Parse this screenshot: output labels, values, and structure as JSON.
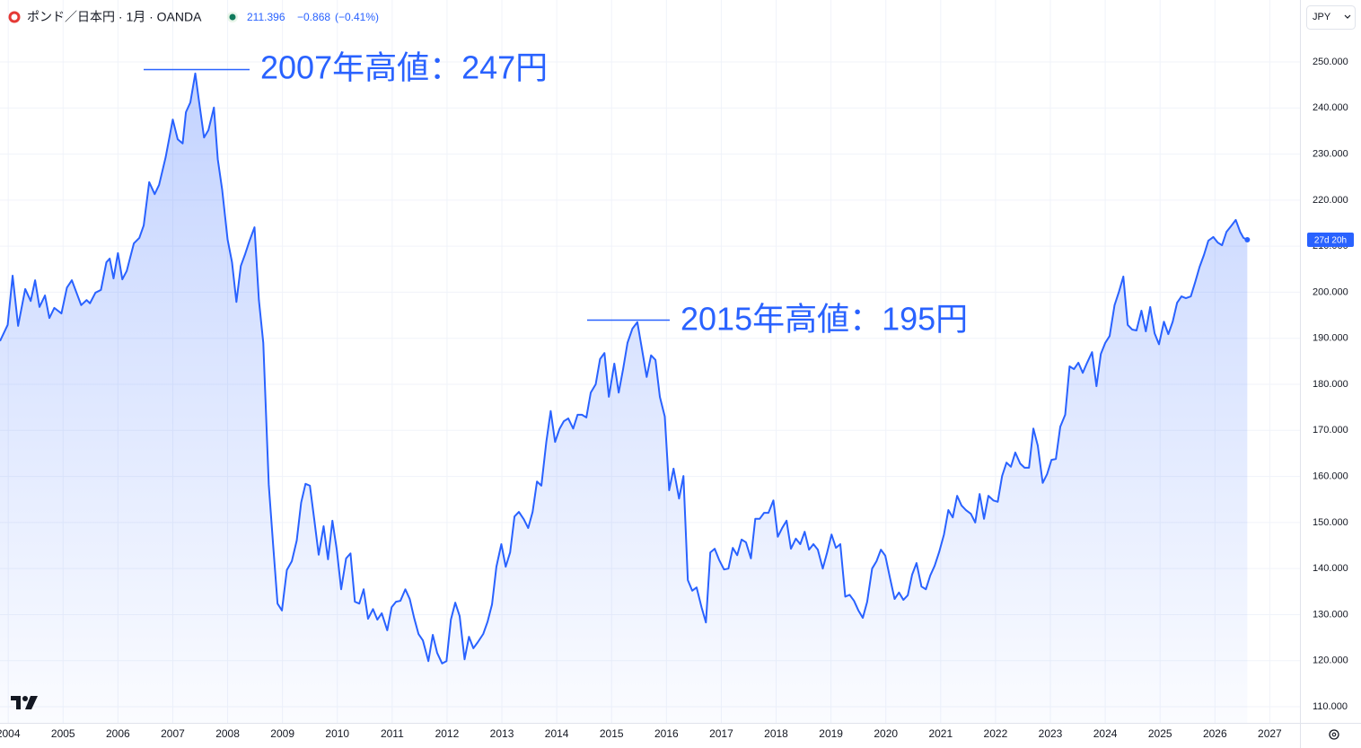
{
  "chart_data": {
    "type": "line",
    "title": "ポンド／日本円 · 1月 · OANDA",
    "last_price": "211.396",
    "change": "−0.868",
    "change_percent": "(−0.41%)",
    "currency": "JPY",
    "countdown": "27d 20h",
    "annotations": [
      "2007年高値：247円",
      "2015年高値：195円"
    ],
    "color": "#2962ff",
    "grid": true,
    "xlim": [
      2003.85,
      2027.55
    ],
    "ylim": [
      106.5,
      263.45
    ],
    "xticks": [
      2004,
      2005,
      2006,
      2007,
      2008,
      2009,
      2010,
      2011,
      2012,
      2013,
      2014,
      2015,
      2016,
      2017,
      2018,
      2019,
      2020,
      2021,
      2022,
      2023,
      2024,
      2025,
      2026,
      2027
    ],
    "yticks": [
      {
        "value": 110,
        "label": "110.000"
      },
      {
        "value": 120,
        "label": "120.000"
      },
      {
        "value": 130,
        "label": "130.000"
      },
      {
        "value": 140,
        "label": "140.000"
      },
      {
        "value": 150,
        "label": "150.000"
      },
      {
        "value": 160,
        "label": "160.000"
      },
      {
        "value": 170,
        "label": "170.000"
      },
      {
        "value": 180,
        "label": "180.000"
      },
      {
        "value": 190,
        "label": "190.000"
      },
      {
        "value": 200,
        "label": "200.000"
      },
      {
        "value": 210,
        "label": "210.000"
      },
      {
        "value": 220,
        "label": "220.000"
      },
      {
        "value": 230,
        "label": "230.000"
      },
      {
        "value": 240,
        "label": "240.000"
      },
      {
        "value": 250,
        "label": "250.000"
      }
    ],
    "x": [
      2003.85,
      2003.99,
      2004.08,
      2004.18,
      2004.31,
      2004.41,
      2004.49,
      2004.57,
      2004.67,
      2004.75,
      2004.84,
      2004.97,
      2005.07,
      2005.16,
      2005.33,
      2005.43,
      2005.49,
      2005.59,
      2005.69,
      2005.79,
      2005.85,
      2005.92,
      2006.0,
      2006.08,
      2006.16,
      2006.29,
      2006.39,
      2006.47,
      2006.57,
      2006.67,
      2006.75,
      2006.87,
      2007.0,
      2007.09,
      2007.18,
      2007.24,
      2007.32,
      2007.41,
      2007.47,
      2007.57,
      2007.65,
      2007.75,
      2007.82,
      2007.9,
      2008.0,
      2008.08,
      2008.16,
      2008.24,
      2008.32,
      2008.4,
      2008.49,
      2008.57,
      2008.65,
      2008.75,
      2008.83,
      2008.91,
      2008.99,
      2009.08,
      2009.17,
      2009.26,
      2009.34,
      2009.42,
      2009.5,
      2009.58,
      2009.66,
      2009.75,
      2009.83,
      2009.91,
      2009.99,
      2010.07,
      2010.16,
      2010.24,
      2010.32,
      2010.4,
      2010.48,
      2010.56,
      2010.65,
      2010.73,
      2010.81,
      2010.91,
      2010.99,
      2011.07,
      2011.15,
      2011.24,
      2011.32,
      2011.4,
      2011.48,
      2011.56,
      2011.66,
      2011.74,
      2011.82,
      2011.91,
      2011.99,
      2012.07,
      2012.15,
      2012.23,
      2012.32,
      2012.4,
      2012.48,
      2012.56,
      2012.66,
      2012.74,
      2012.82,
      2012.9,
      2012.99,
      2013.07,
      2013.15,
      2013.23,
      2013.31,
      2013.4,
      2013.48,
      2013.56,
      2013.64,
      2013.72,
      2013.81,
      2013.89,
      2013.97,
      2014.05,
      2014.13,
      2014.21,
      2014.3,
      2014.38,
      2014.46,
      2014.54,
      2014.62,
      2014.71,
      2014.79,
      2014.87,
      2014.95,
      2015.05,
      2015.13,
      2015.21,
      2015.29,
      2015.38,
      2015.47,
      2015.56,
      2015.64,
      2015.72,
      2015.8,
      2015.88,
      2015.97,
      2016.05,
      2016.13,
      2016.23,
      2016.31,
      2016.39,
      2016.47,
      2016.55,
      2016.64,
      2016.72,
      2016.8,
      2016.88,
      2016.96,
      2017.05,
      2017.13,
      2017.21,
      2017.29,
      2017.37,
      2017.45,
      2017.54,
      2017.62,
      2017.7,
      2017.78,
      2017.86,
      2017.95,
      2018.03,
      2018.11,
      2018.19,
      2018.27,
      2018.36,
      2018.44,
      2018.52,
      2018.6,
      2018.68,
      2018.76,
      2018.85,
      2018.93,
      2019.01,
      2019.09,
      2019.17,
      2019.26,
      2019.34,
      2019.42,
      2019.5,
      2019.58,
      2019.66,
      2019.75,
      2019.83,
      2019.91,
      2019.99,
      2020.07,
      2020.16,
      2020.24,
      2020.32,
      2020.4,
      2020.48,
      2020.56,
      2020.65,
      2020.73,
      2020.81,
      2020.89,
      2020.97,
      2021.06,
      2021.14,
      2021.22,
      2021.3,
      2021.38,
      2021.46,
      2021.55,
      2021.63,
      2021.71,
      2021.79,
      2021.87,
      2021.96,
      2022.04,
      2022.12,
      2022.2,
      2022.28,
      2022.36,
      2022.45,
      2022.53,
      2022.61,
      2022.69,
      2022.77,
      2022.86,
      2022.94,
      2023.02,
      2023.1,
      2023.18,
      2023.27,
      2023.35,
      2023.43,
      2023.51,
      2023.59,
      2023.67,
      2023.76,
      2023.84,
      2023.92,
      2024.0,
      2024.08,
      2024.17,
      2024.25,
      2024.33,
      2024.41,
      2024.49,
      2024.57,
      2024.66,
      2024.74,
      2024.82,
      2024.9,
      2024.98,
      2025.07,
      2025.15,
      2025.23,
      2025.31,
      2025.39,
      2025.47,
      2025.56,
      2025.64,
      2025.72,
      2025.8,
      2025.88,
      2025.97,
      2026.05,
      2026.13,
      2026.21,
      2026.29,
      2026.38,
      2026.46,
      2026.52,
      2026.59
    ],
    "values": [
      189.4,
      192.9,
      203.6,
      192.7,
      200.7,
      198.1,
      202.6,
      196.8,
      199.3,
      194.4,
      196.6,
      195.4,
      201.0,
      202.6,
      197.2,
      198.3,
      197.6,
      199.9,
      200.5,
      206.5,
      207.3,
      203.0,
      208.5,
      202.8,
      204.6,
      210.6,
      211.8,
      214.5,
      223.9,
      221.3,
      223.3,
      229.3,
      237.5,
      233.2,
      232.3,
      239.1,
      241.2,
      247.5,
      242.2,
      233.6,
      235.2,
      240.1,
      228.9,
      222.3,
      211.4,
      206.5,
      197.9,
      205.7,
      208.3,
      211.2,
      214.1,
      198.3,
      189.0,
      158.2,
      145.1,
      132.4,
      130.9,
      139.7,
      141.6,
      146.1,
      154.3,
      158.4,
      158.0,
      150.6,
      143.0,
      149.2,
      142.0,
      150.4,
      144.1,
      135.5,
      142.2,
      143.3,
      132.8,
      132.4,
      135.5,
      129.1,
      131.2,
      128.9,
      130.3,
      126.6,
      131.6,
      132.8,
      133.0,
      135.5,
      133.4,
      129.3,
      125.8,
      124.4,
      119.9,
      125.6,
      121.7,
      119.4,
      119.9,
      128.9,
      132.6,
      129.7,
      120.3,
      125.2,
      122.7,
      124.0,
      125.8,
      128.5,
      132.2,
      140.4,
      145.3,
      140.4,
      143.5,
      151.3,
      152.3,
      150.7,
      148.8,
      152.3,
      158.9,
      158.0,
      167.5,
      174.2,
      167.5,
      170.3,
      172.0,
      172.6,
      170.4,
      173.4,
      173.4,
      172.8,
      178.2,
      180.0,
      185.5,
      186.8,
      177.3,
      184.5,
      178.2,
      183.3,
      189.0,
      192.1,
      193.5,
      187.2,
      181.6,
      186.3,
      185.3,
      177.3,
      173.0,
      157.0,
      161.7,
      155.2,
      160.1,
      137.5,
      135.2,
      135.9,
      131.6,
      128.3,
      143.5,
      144.3,
      141.9,
      139.8,
      140.0,
      144.5,
      142.9,
      146.3,
      145.7,
      142.2,
      150.8,
      150.8,
      152.1,
      152.1,
      154.8,
      146.9,
      148.8,
      150.4,
      144.3,
      146.5,
      145.3,
      148.0,
      144.1,
      145.3,
      144.1,
      140.0,
      143.5,
      147.4,
      144.5,
      145.3,
      133.9,
      134.3,
      133.0,
      130.9,
      129.3,
      132.8,
      140.0,
      141.6,
      144.1,
      142.8,
      138.3,
      133.4,
      134.8,
      133.2,
      134.2,
      138.7,
      141.2,
      136.1,
      135.5,
      138.5,
      140.6,
      143.5,
      147.4,
      152.7,
      151.1,
      155.8,
      153.7,
      152.7,
      151.9,
      150.0,
      156.2,
      150.8,
      155.8,
      154.8,
      154.5,
      160.1,
      163.0,
      162.1,
      165.2,
      162.8,
      161.9,
      161.9,
      170.4,
      166.7,
      158.6,
      160.5,
      163.6,
      163.8,
      170.8,
      173.4,
      183.9,
      183.3,
      184.7,
      182.5,
      184.7,
      187.0,
      179.6,
      186.6,
      189.0,
      190.5,
      197.2,
      200.1,
      203.4,
      192.9,
      191.9,
      191.7,
      196.0,
      191.5,
      196.8,
      191.1,
      188.7,
      193.6,
      190.9,
      193.6,
      197.7,
      199.1,
      198.7,
      199.1,
      202.2,
      205.5,
      208.1,
      211.2,
      212.0,
      210.8,
      210.2,
      213.1,
      214.3,
      215.7,
      213.1,
      211.8,
      211.4
    ]
  }
}
